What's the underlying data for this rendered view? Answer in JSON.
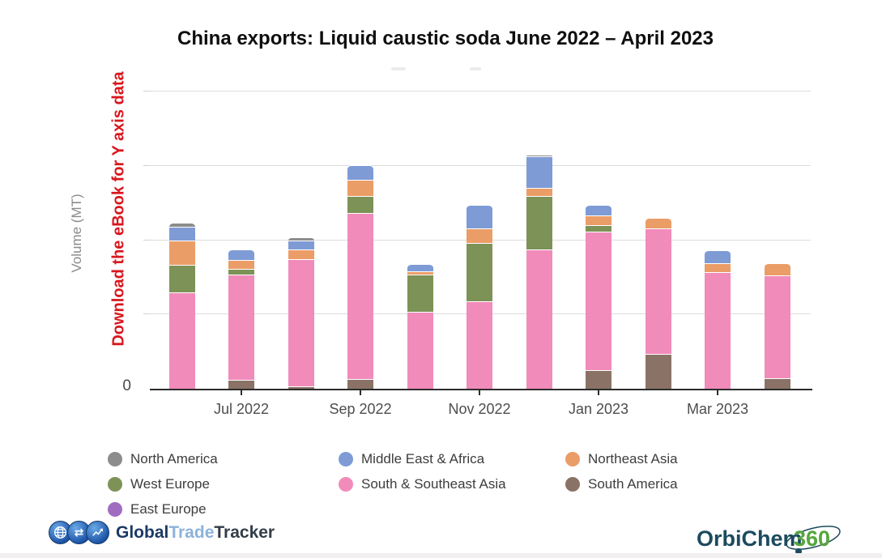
{
  "title": "China exports: Liquid caustic soda June 2022 – April 2023",
  "y_axis": {
    "axis_label": "Volume (MT)",
    "promo_text": "Download the eBook for Y axis data",
    "zero_tick": "0"
  },
  "x_axis": {
    "tick_labels": [
      "Jul 2022",
      "Sep 2022",
      "Nov 2022",
      "Jan 2023",
      "Mar 2023"
    ]
  },
  "legend": {
    "items": [
      {
        "label": "North America",
        "color": "#8c8c8c"
      },
      {
        "label": "Middle East & Africa",
        "color": "#7e9bd5"
      },
      {
        "label": "Northeast Asia",
        "color": "#eb9d67"
      },
      {
        "label": "West Europe",
        "color": "#7d9257"
      },
      {
        "label": "South & Southeast Asia",
        "color": "#f18bba"
      },
      {
        "label": "South America",
        "color": "#8a7366"
      },
      {
        "label": "East Europe",
        "color": "#a06cc0"
      }
    ]
  },
  "chart_data": {
    "type": "bar",
    "stacked": true,
    "title": "China exports: Liquid caustic soda June 2022 – April 2023",
    "xlabel": "",
    "ylabel": "Volume (MT)",
    "y_axis_values_hidden": true,
    "y_units": "relative units: one horizontal gridline interval = 1 unit (numeric Y-axis data hidden behind eBook promo; only 0 labeled)",
    "ylim": [
      0,
      4
    ],
    "gridline_count": 4,
    "legend_position": "bottom",
    "categories": [
      "Jun 2022",
      "Jul 2022",
      "Aug 2022",
      "Sep 2022",
      "Oct 2022",
      "Nov 2022",
      "Dec 2022",
      "Jan 2023",
      "Feb 2023",
      "Mar 2023",
      "Apr 2023"
    ],
    "series": [
      {
        "name": "South America",
        "color": "#8a7366",
        "values": [
          0,
          0.12,
          0.03,
          0.13,
          0,
          0,
          0,
          0.25,
          0.47,
          0,
          0.14
        ]
      },
      {
        "name": "South & Southeast Asia",
        "color": "#f18bba",
        "values": [
          1.3,
          1.42,
          1.71,
          2.23,
          1.04,
          1.18,
          1.87,
          1.87,
          1.69,
          1.57,
          1.39
        ]
      },
      {
        "name": "West Europe",
        "color": "#7d9257",
        "values": [
          0.37,
          0.07,
          0,
          0.23,
          0.5,
          0.78,
          0.72,
          0.08,
          0,
          0,
          0
        ]
      },
      {
        "name": "Northeast Asia",
        "color": "#eb9d67",
        "values": [
          0.32,
          0.12,
          0.14,
          0.22,
          0.04,
          0.2,
          0.11,
          0.13,
          0.14,
          0.12,
          0.16
        ]
      },
      {
        "name": "Middle East & Africa",
        "color": "#7e9bd5",
        "values": [
          0.19,
          0.15,
          0.11,
          0.2,
          0.1,
          0.31,
          0.43,
          0.15,
          0,
          0.17,
          0
        ]
      },
      {
        "name": "North America",
        "color": "#8c8c8c",
        "values": [
          0.05,
          0,
          0.05,
          0,
          0,
          0,
          0.02,
          0,
          0,
          0,
          0
        ]
      },
      {
        "name": "East Europe",
        "color": "#a06cc0",
        "values": [
          0,
          0,
          0,
          0,
          0,
          0,
          0,
          0,
          0,
          0,
          0
        ]
      }
    ]
  },
  "footer": {
    "gtt": {
      "part1": "Global",
      "part2": "Trade",
      "part3": "Tracker"
    },
    "orbichem": {
      "part1": "OrbiChem",
      "part2": "360"
    }
  }
}
